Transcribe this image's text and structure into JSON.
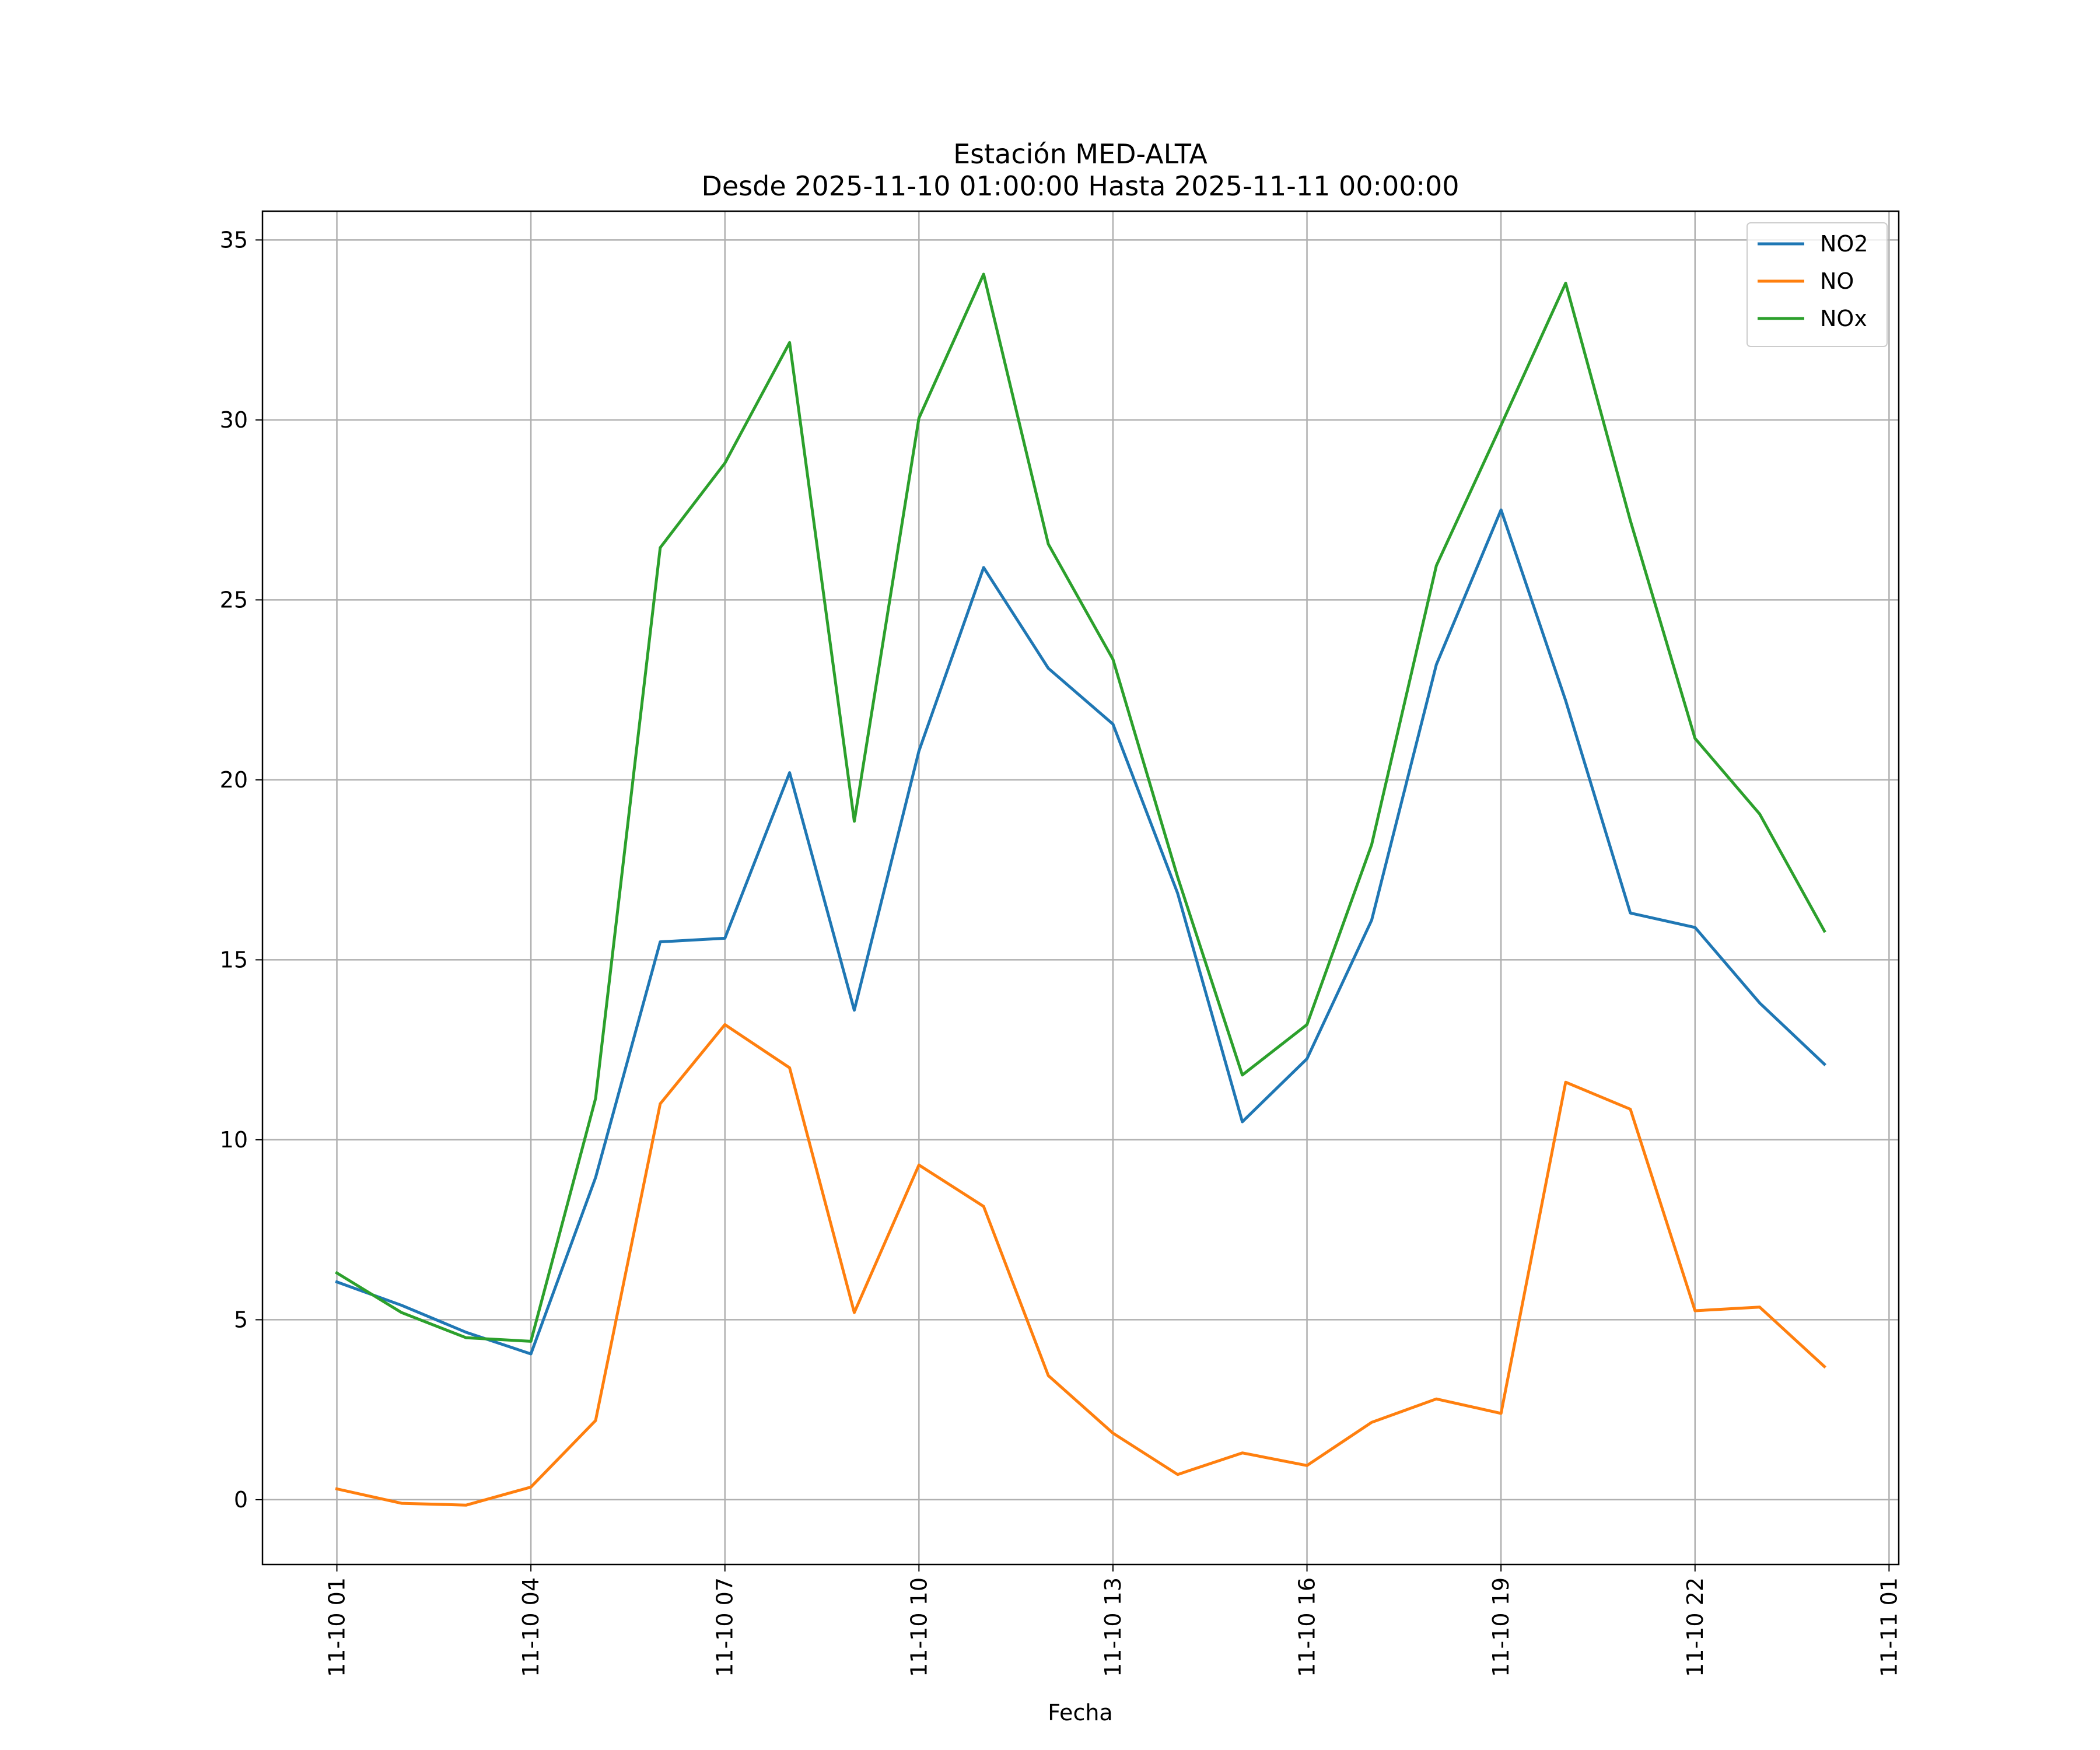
{
  "chart_data": {
    "type": "line",
    "title": "Estación MED-ALTA",
    "subtitle": "Desde 2025-11-10 01:00:00 Hasta 2025-11-11 00:00:00",
    "xlabel": "Fecha",
    "ylabel": "",
    "x": [
      "11-10 01",
      "11-10 02",
      "11-10 03",
      "11-10 04",
      "11-10 05",
      "11-10 06",
      "11-10 07",
      "11-10 08",
      "11-10 09",
      "11-10 10",
      "11-10 11",
      "11-10 12",
      "11-10 13",
      "11-10 14",
      "11-10 15",
      "11-10 16",
      "11-10 17",
      "11-10 18",
      "11-10 19",
      "11-10 20",
      "11-10 21",
      "11-10 22",
      "11-10 23",
      "11-11 00"
    ],
    "x_ticks": [
      "11-10 01",
      "11-10 04",
      "11-10 07",
      "11-10 10",
      "11-10 13",
      "11-10 16",
      "11-10 19",
      "11-10 22",
      "11-11 01"
    ],
    "x_range_hours": [
      -1.15,
      24.15
    ],
    "ylim": [
      -1.8,
      35.8
    ],
    "y_ticks": [
      0,
      5,
      10,
      15,
      20,
      25,
      30,
      35
    ],
    "grid": true,
    "legend_position": "top-right",
    "series": [
      {
        "name": "NO2",
        "color": "#1f77b4",
        "values": [
          6.05,
          5.4,
          4.65,
          4.05,
          8.95,
          15.5,
          15.6,
          20.2,
          13.6,
          20.8,
          25.9,
          23.1,
          21.55,
          16.85,
          10.5,
          12.25,
          16.1,
          23.2,
          27.5,
          22.2,
          16.3,
          15.9,
          13.8,
          12.1
        ]
      },
      {
        "name": "NO",
        "color": "#ff7f0e",
        "values": [
          0.3,
          -0.1,
          -0.15,
          0.35,
          2.2,
          11.0,
          13.2,
          12.0,
          5.2,
          9.3,
          8.15,
          3.45,
          1.85,
          0.7,
          1.3,
          0.95,
          2.15,
          2.8,
          2.4,
          11.6,
          10.85,
          5.25,
          5.35,
          3.7
        ]
      },
      {
        "name": "NOx",
        "color": "#2ca02c",
        "values": [
          6.3,
          5.2,
          4.5,
          4.4,
          11.15,
          26.45,
          28.8,
          32.15,
          18.85,
          30.05,
          34.05,
          26.55,
          23.35,
          17.3,
          11.8,
          13.2,
          18.2,
          25.95,
          29.85,
          33.8,
          27.2,
          21.15,
          19.05,
          15.8
        ]
      }
    ]
  }
}
